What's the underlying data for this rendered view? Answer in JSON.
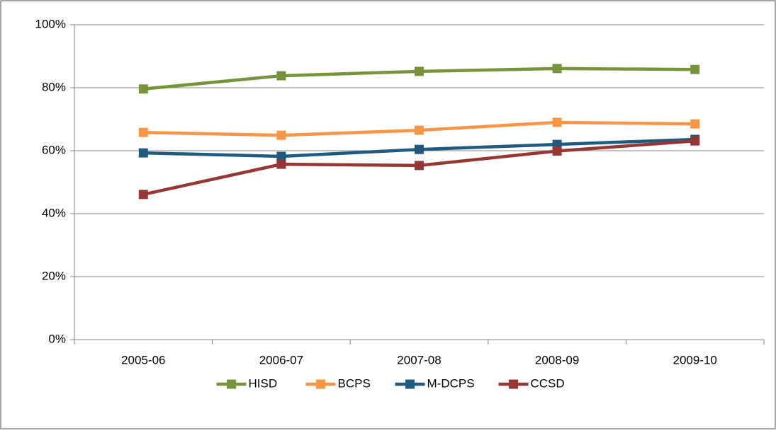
{
  "chart_data": {
    "type": "line",
    "categories": [
      "2005-06",
      "2006-07",
      "2007-08",
      "2008-09",
      "2009-10"
    ],
    "series": [
      {
        "name": "HISD",
        "color": "#77933c",
        "values": [
          79.6,
          83.8,
          85.2,
          86.1,
          85.8
        ]
      },
      {
        "name": "BCPS",
        "color": "#f79646",
        "values": [
          65.8,
          64.9,
          66.5,
          69.0,
          68.5
        ]
      },
      {
        "name": "M-DCPS",
        "color": "#1f5a7f",
        "values": [
          59.3,
          58.2,
          60.4,
          62.0,
          63.6
        ]
      },
      {
        "name": "CCSD",
        "color": "#953735",
        "values": [
          46.1,
          55.7,
          55.3,
          59.9,
          63.1
        ]
      }
    ],
    "ylim": [
      0,
      100
    ],
    "yticks": [
      {
        "value": 0,
        "label": "0%"
      },
      {
        "value": 20,
        "label": "20%"
      },
      {
        "value": 40,
        "label": "40%"
      },
      {
        "value": 60,
        "label": "60%"
      },
      {
        "value": 80,
        "label": "80%"
      },
      {
        "value": 100,
        "label": "100%"
      }
    ],
    "grid": true,
    "legend": "bottom"
  }
}
